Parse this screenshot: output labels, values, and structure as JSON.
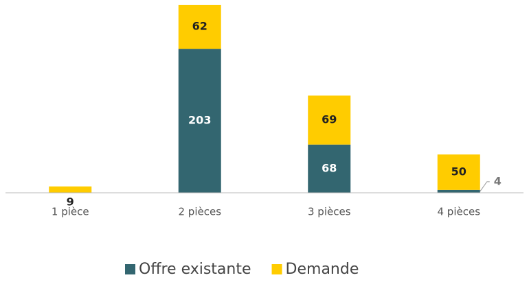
{
  "chart_data": {
    "type": "stacked_bar",
    "categories": [
      "1 pièce",
      "2 pièces",
      "3 pièces",
      "4 pièces"
    ],
    "series": [
      {
        "name": "Offre existante",
        "color": "#336670",
        "values": [
          null,
          203,
          68,
          4
        ]
      },
      {
        "name": "Demande",
        "color": "#FFCC00",
        "values": [
          9,
          62,
          69,
          50
        ]
      }
    ],
    "ylim": [
      0,
      265
    ]
  }
}
